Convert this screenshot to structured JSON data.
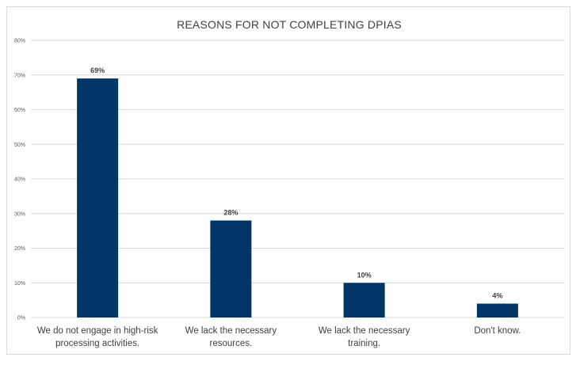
{
  "chart_data": {
    "type": "bar",
    "title": "REASONS FOR NOT COMPLETING DPIAS",
    "categories": [
      [
        "We do not engage in high-risk",
        "processing activities."
      ],
      [
        "We lack the necessary",
        "resources."
      ],
      [
        "We lack the necessary",
        "training."
      ],
      [
        "Don't know."
      ]
    ],
    "values": [
      69,
      28,
      10,
      4
    ],
    "data_labels": [
      "69%",
      "28%",
      "10%",
      "4%"
    ],
    "y_ticks": [
      "0%",
      "10%",
      "20%",
      "30%",
      "40%",
      "50%",
      "60%",
      "70%",
      "80%"
    ],
    "ylim": [
      0,
      80
    ],
    "grid": true,
    "bar_color": "#003366",
    "grid_color": "#d9d9d9"
  }
}
